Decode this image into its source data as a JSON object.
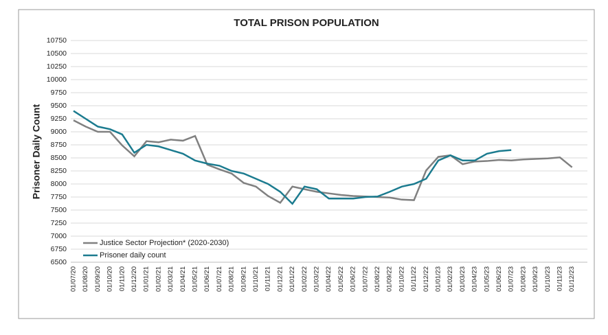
{
  "chart_data": {
    "type": "line",
    "title": "TOTAL PRISON POPULATION",
    "y_label": "Prisoner  Daily Count",
    "x": [
      "01/07/20",
      "01/08/20",
      "01/09/20",
      "01/10/20",
      "01/11/20",
      "01/12/20",
      "01/01/21",
      "01/02/21",
      "01/03/21",
      "01/04/21",
      "01/05/21",
      "01/06/21",
      "01/07/21",
      "01/08/21",
      "01/09/21",
      "01/10/21",
      "01/11/21",
      "01/12/21",
      "01/01/22",
      "01/02/22",
      "01/03/22",
      "01/04/22",
      "01/05/22",
      "01/06/22",
      "01/07/22",
      "01/08/22",
      "01/09/22",
      "01/10/22",
      "01/11/22",
      "01/12/22",
      "01/01/23",
      "01/02/23",
      "01/03/23",
      "01/04/23",
      "01/05/23",
      "01/06/23",
      "01/07/23",
      "01/08/23",
      "01/09/23",
      "01/10/23",
      "01/11/23",
      "01/12/23"
    ],
    "series": [
      {
        "name": "Justice Sector Projection* (2020-2030)",
        "color": "#808080",
        "values": [
          9220,
          9100,
          9000,
          9000,
          8740,
          8530,
          8820,
          8800,
          8850,
          8830,
          8920,
          8370,
          8280,
          8200,
          8020,
          7950,
          7770,
          7640,
          7950,
          7900,
          7850,
          7820,
          7790,
          7770,
          7760,
          7750,
          7740,
          7700,
          7690,
          8260,
          8520,
          8550,
          8380,
          8430,
          8440,
          8460,
          8450,
          8470,
          8480,
          8490,
          8510,
          8320
        ]
      },
      {
        "name": "Prisoner daily count",
        "color": "#1b7b8f",
        "values": [
          9400,
          9250,
          9100,
          9050,
          8950,
          8600,
          8750,
          8720,
          8650,
          8580,
          8450,
          8390,
          8350,
          8250,
          8200,
          8100,
          8000,
          7850,
          7620,
          7950,
          7900,
          7720,
          7720,
          7720,
          7750,
          7760,
          7850,
          7950,
          8000,
          8100,
          8450,
          8550,
          8450,
          8450,
          8580,
          8630,
          8650,
          null,
          null,
          null,
          null,
          null
        ]
      }
    ],
    "ylim": [
      6500,
      10750
    ],
    "yticks": [
      6500,
      6750,
      7000,
      7250,
      7500,
      7750,
      8000,
      8250,
      8500,
      8750,
      9000,
      9250,
      9500,
      9750,
      10000,
      10250,
      10500,
      10750
    ],
    "grid": true
  }
}
